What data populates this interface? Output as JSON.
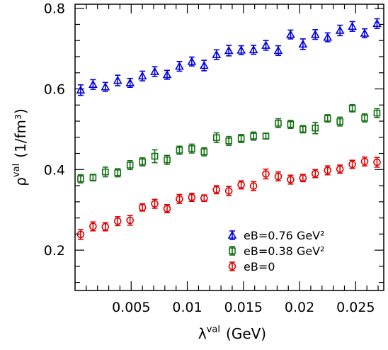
{
  "chart_data": {
    "type": "scatter",
    "xlabel_main": "λ",
    "xlabel_sup": "val",
    "xlabel_unit": "(GeV)",
    "ylabel_main": "ρ",
    "ylabel_sup": "val",
    "ylabel_unit": "(1/fm³)",
    "xlim": [
      0.0,
      0.0275
    ],
    "ylim": [
      0.1,
      0.81
    ],
    "xticks": [
      0.005,
      0.01,
      0.015,
      0.02,
      0.025
    ],
    "xtick_labels": [
      "0.005",
      "0.01",
      "0.015",
      "0.02",
      "0.025"
    ],
    "yticks": [
      0.2,
      0.4,
      0.6,
      0.8
    ],
    "ytick_labels": [
      "0.2",
      "0.4",
      "0.6",
      "0.8"
    ],
    "x": [
      0.0005,
      0.0016,
      0.0027,
      0.0038,
      0.0049,
      0.006,
      0.0071,
      0.0082,
      0.0093,
      0.0104,
      0.0115,
      0.0126,
      0.0137,
      0.0148,
      0.0159,
      0.017,
      0.0181,
      0.0192,
      0.0203,
      0.0214,
      0.0225,
      0.0236,
      0.0247,
      0.0258,
      0.0269
    ],
    "series": [
      {
        "name": "eB=0.76 GeV²",
        "marker": "triangle",
        "color": "#0000dd",
        "values": [
          0.597,
          0.611,
          0.605,
          0.621,
          0.615,
          0.632,
          0.643,
          0.635,
          0.656,
          0.668,
          0.658,
          0.685,
          0.695,
          0.696,
          0.697,
          0.708,
          0.695,
          0.735,
          0.711,
          0.735,
          0.728,
          0.745,
          0.755,
          0.738,
          0.762
        ],
        "errors": [
          0.013,
          0.012,
          0.011,
          0.013,
          0.011,
          0.012,
          0.012,
          0.011,
          0.012,
          0.011,
          0.013,
          0.012,
          0.013,
          0.011,
          0.011,
          0.012,
          0.012,
          0.011,
          0.013,
          0.012,
          0.011,
          0.013,
          0.012,
          0.011,
          0.012
        ]
      },
      {
        "name": "eB=0.38 GeV²",
        "marker": "square",
        "color": "#127012",
        "values": [
          0.377,
          0.38,
          0.394,
          0.392,
          0.411,
          0.419,
          0.433,
          0.424,
          0.448,
          0.452,
          0.444,
          0.479,
          0.471,
          0.477,
          0.483,
          0.483,
          0.515,
          0.512,
          0.5,
          0.503,
          0.527,
          0.519,
          0.552,
          0.528,
          0.54
        ],
        "errors": [
          0.01,
          0.008,
          0.012,
          0.01,
          0.011,
          0.01,
          0.016,
          0.011,
          0.01,
          0.011,
          0.01,
          0.012,
          0.011,
          0.01,
          0.01,
          0.007,
          0.011,
          0.01,
          0.009,
          0.014,
          0.009,
          0.011,
          0.009,
          0.01,
          0.011
        ]
      },
      {
        "name": "eB=0",
        "marker": "circle",
        "color": "#dd0000",
        "values": [
          0.239,
          0.259,
          0.258,
          0.272,
          0.274,
          0.306,
          0.315,
          0.303,
          0.327,
          0.331,
          0.329,
          0.35,
          0.347,
          0.362,
          0.359,
          0.389,
          0.383,
          0.375,
          0.379,
          0.39,
          0.398,
          0.401,
          0.413,
          0.42,
          0.418
        ],
        "errors": [
          0.012,
          0.011,
          0.01,
          0.011,
          0.012,
          0.009,
          0.011,
          0.01,
          0.011,
          0.01,
          0.008,
          0.01,
          0.011,
          0.01,
          0.011,
          0.012,
          0.011,
          0.011,
          0.009,
          0.01,
          0.011,
          0.01,
          0.01,
          0.011,
          0.012
        ]
      }
    ],
    "legend_position": "bottom-right",
    "grid": false
  }
}
